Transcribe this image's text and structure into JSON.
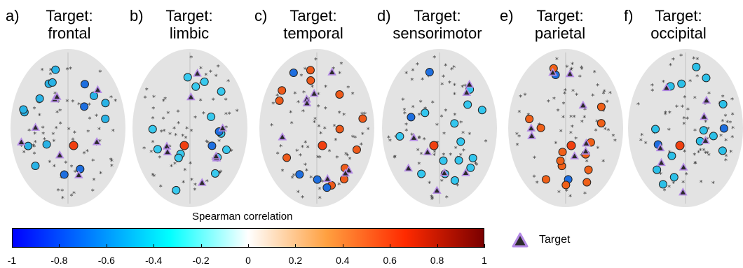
{
  "panels": [
    {
      "letter": "a)",
      "title_line1": "Target:",
      "title_line2": "frontal"
    },
    {
      "letter": "b)",
      "title_line1": "Target:",
      "title_line2": "limbic"
    },
    {
      "letter": "c)",
      "title_line1": "Target:",
      "title_line2": "temporal"
    },
    {
      "letter": "d)",
      "title_line1": "Target:",
      "title_line2": "sensorimotor"
    },
    {
      "letter": "e)",
      "title_line1": "Target:",
      "title_line2": "parietal"
    },
    {
      "letter": "f)",
      "title_line1": "Target:",
      "title_line2": "occipital"
    }
  ],
  "colorbar": {
    "label": "Spearman correlation",
    "ticks": [
      "-1",
      "-0.8",
      "-0.6",
      "-0.4",
      "-0.2",
      "0",
      "0.2",
      "0.4",
      "0.6",
      "0.8",
      "1"
    ],
    "range": [
      -1,
      1
    ],
    "colormap": [
      "#0000ff",
      "#007fff",
      "#00ffff",
      "#ffffff",
      "#ffa040",
      "#ff2a00",
      "#7a0000"
    ]
  },
  "legend": {
    "label": "Target",
    "marker_color": "#b58ae6",
    "marker_inner": "#2b2b2b"
  },
  "colors": {
    "brain": "#e3e3e3",
    "inactive_marker": "#3a3a3a"
  }
}
